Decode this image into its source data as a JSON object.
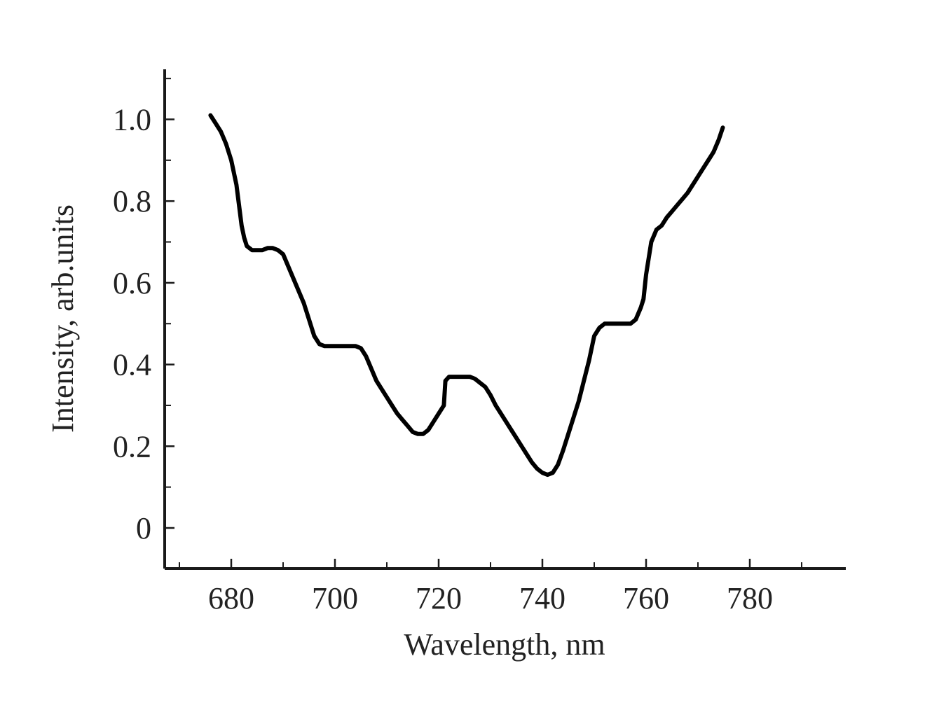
{
  "chart_data": {
    "type": "line",
    "title": "",
    "xlabel": "Wavelength, nm",
    "ylabel": "Intensity, arb.units",
    "xlim": [
      668,
      797
    ],
    "ylim": [
      -0.1,
      1.12
    ],
    "x_ticks": [
      680,
      700,
      720,
      740,
      760,
      780
    ],
    "x_tick_labels": [
      "680",
      "700",
      "720",
      "740",
      "760",
      "780"
    ],
    "x_minor_ticks": [
      670,
      690,
      710,
      730,
      750,
      770,
      790
    ],
    "y_ticks": [
      0,
      0.2,
      0.4,
      0.6,
      0.8,
      1.0
    ],
    "y_tick_labels": [
      "0",
      "0.2",
      "0.4",
      "0.6",
      "0.8",
      "1.0"
    ],
    "y_minor_ticks": [
      -0.1,
      0.1,
      0.3,
      0.5,
      0.7,
      0.9,
      1.1
    ],
    "grid": false,
    "legend": "none",
    "colors": {
      "line": "#000000",
      "axis": "#1a1a1a",
      "text": "#222222"
    },
    "series": [
      {
        "x": [
          676,
          677,
          678,
          679,
          680,
          681,
          682,
          682.5,
          683,
          684,
          685,
          686,
          687,
          688,
          689,
          690,
          691,
          692,
          693,
          694,
          695,
          696,
          697,
          698,
          699,
          700,
          702,
          704,
          705,
          706,
          707,
          708,
          709,
          710,
          711,
          712,
          713,
          714,
          715,
          716,
          717,
          718,
          719,
          720,
          721,
          721.3,
          722,
          723,
          724,
          725,
          726,
          727,
          728,
          729,
          730,
          731,
          732,
          733,
          734,
          735,
          736,
          737,
          738,
          739,
          740,
          741,
          742,
          743,
          744,
          745,
          746,
          747,
          748,
          749,
          750,
          751,
          752,
          753,
          754,
          755,
          756,
          757,
          758,
          759,
          759.5,
          760,
          761,
          762,
          763,
          764,
          765,
          766,
          767,
          768,
          769,
          770,
          771,
          772,
          773,
          774,
          774.8
        ],
        "y": [
          1.01,
          0.99,
          0.97,
          0.94,
          0.9,
          0.84,
          0.74,
          0.71,
          0.69,
          0.68,
          0.68,
          0.68,
          0.685,
          0.685,
          0.68,
          0.67,
          0.64,
          0.61,
          0.58,
          0.55,
          0.51,
          0.47,
          0.45,
          0.445,
          0.445,
          0.445,
          0.445,
          0.445,
          0.44,
          0.42,
          0.39,
          0.36,
          0.34,
          0.32,
          0.3,
          0.28,
          0.265,
          0.25,
          0.235,
          0.23,
          0.23,
          0.24,
          0.26,
          0.28,
          0.3,
          0.36,
          0.37,
          0.37,
          0.37,
          0.37,
          0.37,
          0.365,
          0.355,
          0.345,
          0.325,
          0.3,
          0.28,
          0.26,
          0.24,
          0.22,
          0.2,
          0.18,
          0.16,
          0.145,
          0.135,
          0.13,
          0.135,
          0.155,
          0.19,
          0.23,
          0.27,
          0.31,
          0.36,
          0.41,
          0.47,
          0.49,
          0.5,
          0.5,
          0.5,
          0.5,
          0.5,
          0.5,
          0.51,
          0.54,
          0.56,
          0.62,
          0.7,
          0.73,
          0.74,
          0.76,
          0.775,
          0.79,
          0.805,
          0.82,
          0.84,
          0.86,
          0.88,
          0.9,
          0.92,
          0.95,
          0.98
        ]
      }
    ]
  }
}
